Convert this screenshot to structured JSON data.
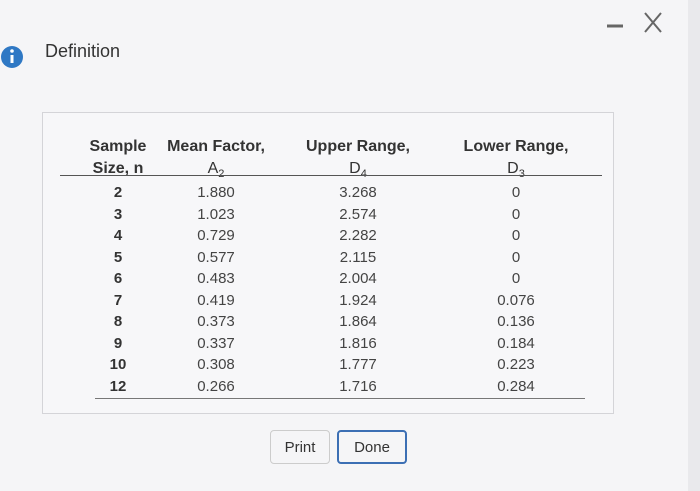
{
  "dialog": {
    "title": "Definition",
    "table": {
      "headers": [
        {
          "line1": "Sample",
          "line2": "Size, n"
        },
        {
          "line1": "Mean Factor,",
          "symbol": "A",
          "subscript": "2"
        },
        {
          "line1": "Upper Range,",
          "symbol": "D",
          "subscript": "4"
        },
        {
          "line1": "Lower Range,",
          "symbol": "D",
          "subscript": "3"
        }
      ],
      "rows": [
        [
          "2",
          "1.880",
          "3.268",
          "0"
        ],
        [
          "3",
          "1.023",
          "2.574",
          "0"
        ],
        [
          "4",
          "0.729",
          "2.282",
          "0"
        ],
        [
          "5",
          "0.577",
          "2.115",
          "0"
        ],
        [
          "6",
          "0.483",
          "2.004",
          "0"
        ],
        [
          "7",
          "0.419",
          "1.924",
          "0.076"
        ],
        [
          "8",
          "0.373",
          "1.864",
          "0.136"
        ],
        [
          "9",
          "0.337",
          "1.816",
          "0.184"
        ],
        [
          "10",
          "0.308",
          "1.777",
          "0.223"
        ],
        [
          "12",
          "0.266",
          "1.716",
          "0.284"
        ]
      ]
    },
    "buttons": [
      "Print",
      "Done"
    ]
  }
}
